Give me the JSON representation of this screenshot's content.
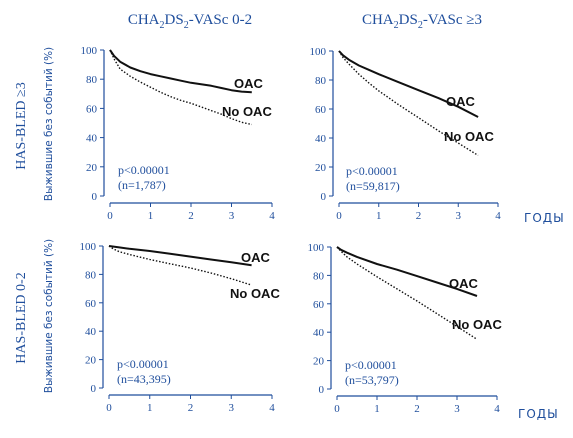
{
  "chart_data": [
    {
      "type": "line",
      "panel": "top-left",
      "xlim": [
        0,
        4
      ],
      "ylim": [
        0,
        100
      ],
      "xticks": [
        "0",
        "1",
        "2",
        "3",
        "4"
      ],
      "yticks": [
        "0",
        "20",
        "40",
        "60",
        "80",
        "100"
      ],
      "annotations": [
        "p<0.00001",
        "(n=1,787)"
      ],
      "series": [
        {
          "name": "OAC",
          "style": "solid",
          "x": [
            0,
            0.1,
            0.25,
            0.5,
            0.75,
            1.0,
            1.25,
            1.5,
            1.75,
            2.0,
            2.25,
            2.5,
            2.75,
            3.0,
            3.25,
            3.5
          ],
          "y": [
            100,
            96,
            92,
            88,
            85.5,
            83.5,
            82,
            80.5,
            79,
            77.5,
            76.5,
            75.5,
            74,
            72.5,
            71.5,
            71
          ]
        },
        {
          "name": "No OAC",
          "style": "dotted",
          "x": [
            0,
            0.1,
            0.25,
            0.5,
            0.75,
            1.0,
            1.25,
            1.5,
            1.75,
            2.0,
            2.25,
            2.5,
            2.75,
            3.0,
            3.25,
            3.5
          ],
          "y": [
            100,
            94,
            87,
            82,
            78,
            74.5,
            71,
            68,
            65.5,
            63.5,
            61,
            58.5,
            56,
            53,
            50.5,
            49
          ]
        }
      ]
    },
    {
      "type": "line",
      "panel": "top-right",
      "xlim": [
        0,
        4
      ],
      "ylim": [
        0,
        100
      ],
      "xticks": [
        "0",
        "1",
        "2",
        "3",
        "4"
      ],
      "yticks": [
        "0",
        "20",
        "40",
        "60",
        "80",
        "100"
      ],
      "annotations": [
        "p<0.00001",
        "(n=59,817)"
      ],
      "series": [
        {
          "name": "OAC",
          "style": "solid",
          "x": [
            0,
            0.1,
            0.25,
            0.5,
            0.75,
            1.0,
            1.5,
            2.0,
            2.5,
            3.0,
            3.5
          ],
          "y": [
            100,
            97,
            94,
            90,
            87,
            84,
            78.5,
            73,
            67.5,
            61.5,
            54.5
          ]
        },
        {
          "name": "No OAC",
          "style": "dotted",
          "x": [
            0,
            0.1,
            0.25,
            0.5,
            0.75,
            1.0,
            1.5,
            2.0,
            2.5,
            3.0,
            3.5
          ],
          "y": [
            100,
            95.5,
            91,
            84,
            78,
            72.5,
            63,
            54,
            45,
            36.5,
            28
          ]
        }
      ]
    },
    {
      "type": "line",
      "panel": "bottom-left",
      "xlim": [
        0,
        4
      ],
      "ylim": [
        0,
        100
      ],
      "xticks": [
        "0",
        "1",
        "2",
        "3",
        "4"
      ],
      "yticks": [
        "0",
        "20",
        "40",
        "60",
        "80",
        "100"
      ],
      "annotations": [
        "p<0.00001",
        "(n=43,395)"
      ],
      "series": [
        {
          "name": "OAC",
          "style": "solid",
          "x": [
            0,
            0.25,
            0.5,
            1.0,
            1.5,
            2.0,
            2.5,
            3.0,
            3.5
          ],
          "y": [
            100,
            99,
            98,
            96.5,
            94.5,
            92.5,
            90.5,
            88.5,
            86.5
          ]
        },
        {
          "name": "No OAC",
          "style": "dotted",
          "x": [
            0,
            0.1,
            0.25,
            0.5,
            1.0,
            1.5,
            2.0,
            2.5,
            3.0,
            3.5
          ],
          "y": [
            100,
            98,
            96,
            94,
            90.5,
            87.5,
            84.5,
            81,
            77,
            72.5
          ]
        }
      ]
    },
    {
      "type": "line",
      "panel": "bottom-right",
      "xlim": [
        0,
        4
      ],
      "ylim": [
        0,
        100
      ],
      "xticks": [
        "0",
        "1",
        "2",
        "3",
        "4"
      ],
      "yticks": [
        "0",
        "20",
        "40",
        "60",
        "80",
        "100"
      ],
      "annotations": [
        "p<0.00001",
        "(n=53,797)"
      ],
      "series": [
        {
          "name": "OAC",
          "style": "solid",
          "x": [
            0,
            0.1,
            0.25,
            0.5,
            1.0,
            1.5,
            2.0,
            2.5,
            3.0,
            3.5
          ],
          "y": [
            100,
            98,
            96,
            93,
            88,
            84,
            79.5,
            75,
            70.5,
            65.5
          ]
        },
        {
          "name": "No OAC",
          "style": "dotted",
          "x": [
            0,
            0.1,
            0.25,
            0.5,
            1.0,
            1.5,
            2.0,
            2.5,
            3.0,
            3.5
          ],
          "y": [
            100,
            97,
            93,
            88,
            79,
            70.5,
            62,
            53,
            44,
            35
          ]
        }
      ]
    }
  ],
  "col_titles": {
    "left": {
      "pre": "CHA",
      "s1": "2",
      "mid": "DS",
      "s2": "2",
      "post": "-VASc 0-2"
    },
    "right": {
      "pre": "CHA",
      "s1": "2",
      "mid": "DS",
      "s2": "2",
      "post": "-VASc ≥3"
    }
  },
  "row_labels": {
    "top": "HAS-BLED ≥3",
    "bottom": "HAS-BLED 0-2"
  },
  "ylabel": "Выжившие без событий (%)",
  "xlabel": "ГОДЫ",
  "style": {
    "text_color": "#1f4e9c",
    "line_color": "#111111",
    "axis_color": "#1f4e9c"
  }
}
